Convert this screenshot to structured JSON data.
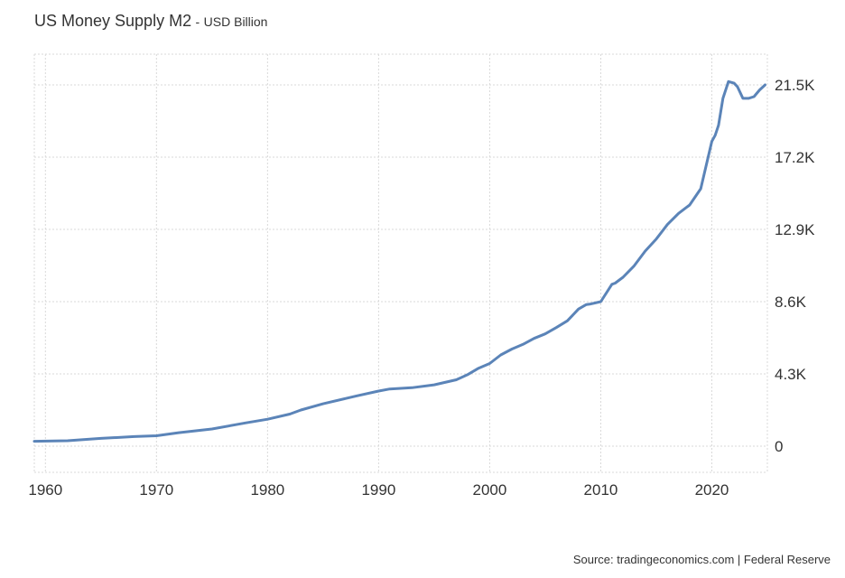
{
  "header": {
    "title": "US Money Supply M2",
    "separator": "-",
    "unit": "USD Billion"
  },
  "source": "Source: tradingeconomics.com | Federal Reserve",
  "colors": {
    "line": "#5b84b8",
    "grid": "#d9d9d9",
    "text": "#333333"
  },
  "chart_data": {
    "type": "line",
    "title": "US Money Supply M2",
    "ylabel": "",
    "xlabel": "",
    "grid": true,
    "legend": "none",
    "xlim": [
      1959,
      2025
    ],
    "ylim": [
      0,
      21500
    ],
    "x_ticks": [
      1960,
      1970,
      1980,
      1990,
      2000,
      2010,
      2020
    ],
    "y_ticks": [
      {
        "value": 0,
        "label": "0"
      },
      {
        "value": 4300,
        "label": "4.3K"
      },
      {
        "value": 8600,
        "label": "8.6K"
      },
      {
        "value": 12900,
        "label": "12.9K"
      },
      {
        "value": 17200,
        "label": "17.2K"
      },
      {
        "value": 21500,
        "label": "21.5K"
      }
    ],
    "series": [
      {
        "x": [
          1959,
          1962,
          1965,
          1968,
          1970,
          1972,
          1975,
          1978,
          1980,
          1982,
          1983,
          1985,
          1987,
          1988,
          1990,
          1991,
          1992,
          1993,
          1995,
          1997,
          1998,
          1999,
          2000,
          2001,
          2002,
          2003,
          2004,
          2005,
          2006,
          2007,
          2008,
          2008.7,
          2009,
          2010,
          2011,
          2011.3,
          2012,
          2013,
          2014,
          2015,
          2016,
          2017,
          2018,
          2019,
          2020,
          2020.3,
          2020.6,
          2021,
          2021.5,
          2022,
          2022.3,
          2022.8,
          2023.3,
          2023.8,
          2024.3,
          2024.8
        ],
        "y": [
          290,
          320,
          460,
          570,
          620,
          800,
          1020,
          1380,
          1600,
          1910,
          2150,
          2520,
          2830,
          2990,
          3280,
          3400,
          3440,
          3480,
          3650,
          3950,
          4250,
          4640,
          4920,
          5430,
          5780,
          6060,
          6410,
          6680,
          7060,
          7460,
          8160,
          8430,
          8450,
          8600,
          9630,
          9700,
          10050,
          10730,
          11610,
          12330,
          13190,
          13850,
          14350,
          15320,
          18140,
          18500,
          19100,
          20700,
          21700,
          21600,
          21400,
          20700,
          20700,
          20800,
          21200,
          21500
        ]
      }
    ]
  }
}
